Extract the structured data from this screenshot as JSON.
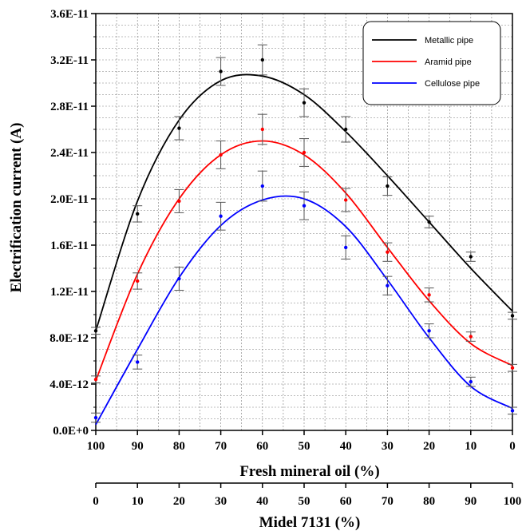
{
  "chart_data": {
    "type": "scatter",
    "ylabel": "Electrification current (A)",
    "xlabel": "Fresh mineral oil (%)",
    "x2label": "Midel 7131 (%)",
    "ylim": [
      0,
      3.6e-11
    ],
    "yticks": [
      0,
      4e-12,
      8e-12,
      1.2e-11,
      1.6e-11,
      2e-11,
      2.4e-11,
      2.8e-11,
      3.2e-11,
      3.6e-11
    ],
    "ytick_labels": [
      "0.0E+0",
      "4.0E-12",
      "8.0E-12",
      "1.2E-11",
      "1.6E-11",
      "2.0E-11",
      "2.4E-11",
      "2.8E-11",
      "3.2E-11",
      "3.6E-11"
    ],
    "xticks_fresh": [
      "100",
      "90",
      "80",
      "70",
      "60",
      "50",
      "40",
      "30",
      "20",
      "10",
      "0"
    ],
    "xticks_midel": [
      "0",
      "10",
      "20",
      "30",
      "40",
      "50",
      "60",
      "70",
      "80",
      "90",
      "100"
    ],
    "x": [
      0,
      10,
      20,
      30,
      40,
      50,
      60,
      70,
      80,
      90,
      100
    ],
    "grid": true,
    "legend_position": "top-right",
    "series": [
      {
        "name": "Metallic pipe",
        "color": "#000000",
        "values": [
          8.6e-12,
          1.87e-11,
          2.61e-11,
          3.1e-11,
          3.2e-11,
          2.83e-11,
          2.6e-11,
          2.11e-11,
          1.8e-11,
          1.5e-11,
          9.9e-12
        ],
        "errors": [
          3e-13,
          7e-13,
          1e-12,
          1.2e-12,
          1.3e-12,
          1.2e-12,
          1.1e-12,
          8e-13,
          5e-13,
          4e-13,
          3e-13
        ],
        "fit": [
          8.6e-12,
          1.98e-11,
          2.68e-11,
          3.02e-11,
          3.06e-11,
          2.9e-11,
          2.58e-11,
          2.2e-11,
          1.8e-11,
          1.4e-11,
          1.03e-11
        ]
      },
      {
        "name": "Aramid pipe",
        "color": "#ff0000",
        "values": [
          4.4e-12,
          1.29e-11,
          1.98e-11,
          2.38e-11,
          2.6e-11,
          2.4e-11,
          1.99e-11,
          1.54e-11,
          1.17e-11,
          8.1e-12,
          5.4e-12
        ],
        "errors": [
          3e-13,
          7e-13,
          1e-12,
          1.2e-12,
          1.3e-12,
          1.2e-12,
          1e-12,
          8e-13,
          6e-13,
          4e-13,
          3e-13
        ],
        "fit": [
          4.3e-12,
          1.35e-11,
          2e-11,
          2.38e-11,
          2.5e-11,
          2.38e-11,
          2.05e-11,
          1.58e-11,
          1.12e-11,
          7.5e-12,
          5.6e-12
        ]
      },
      {
        "name": "Cellulose pipe",
        "color": "#0000ff",
        "values": [
          1.1e-12,
          5.9e-12,
          1.31e-11,
          1.85e-11,
          2.11e-11,
          1.94e-11,
          1.58e-11,
          1.25e-11,
          8.6e-12,
          4.2e-12,
          1.7e-12
        ],
        "errors": [
          4e-13,
          6e-13,
          1e-12,
          1.2e-12,
          1.3e-12,
          1.2e-12,
          1e-12,
          8e-13,
          6e-13,
          4e-13,
          3e-13
        ],
        "fit": [
          5e-13,
          7e-12,
          1.32e-11,
          1.77e-11,
          1.99e-11,
          2e-11,
          1.76e-11,
          1.3e-11,
          8e-12,
          3.8e-12,
          1.9e-12
        ]
      }
    ]
  }
}
